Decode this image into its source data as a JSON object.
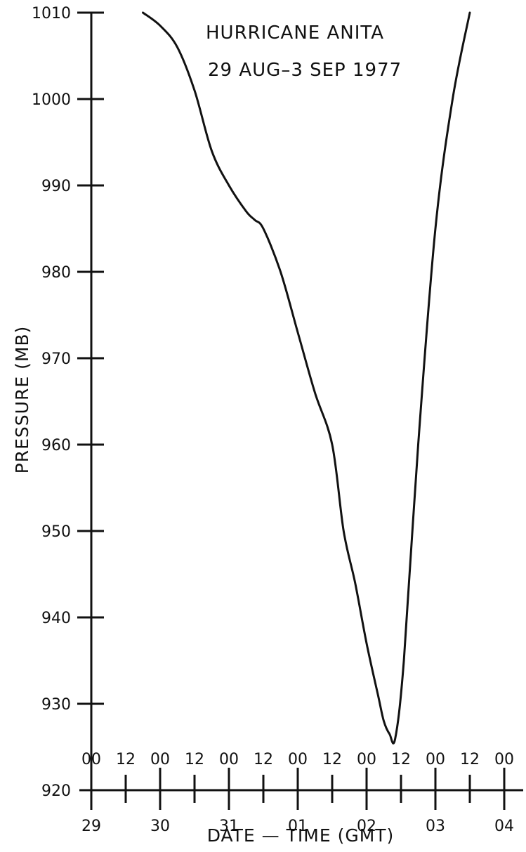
{
  "chart_data": {
    "type": "line",
    "title": "HURRICANE ANITA",
    "subtitle": "29 AUG–3 SEP 1977",
    "xlabel": "DATE — TIME (GMT)",
    "ylabel": "PRESSURE (MB)",
    "ylim": [
      920,
      1010
    ],
    "y_ticks": [
      920,
      930,
      940,
      950,
      960,
      970,
      980,
      990,
      1000,
      1010
    ],
    "x_ticks": [
      {
        "day": "29",
        "hour": "00"
      },
      {
        "day": "",
        "hour": "12"
      },
      {
        "day": "30",
        "hour": "00"
      },
      {
        "day": "",
        "hour": "12"
      },
      {
        "day": "31",
        "hour": "00"
      },
      {
        "day": "",
        "hour": "12"
      },
      {
        "day": "01",
        "hour": "00"
      },
      {
        "day": "",
        "hour": "12"
      },
      {
        "day": "02",
        "hour": "00"
      },
      {
        "day": "",
        "hour": "12"
      },
      {
        "day": "03",
        "hour": "00"
      },
      {
        "day": "",
        "hour": "12"
      },
      {
        "day": "04",
        "hour": "00"
      }
    ],
    "x_unit": "hours after 29 Aug 00 GMT",
    "grid": false,
    "series": [
      {
        "name": "",
        "x": [
          18,
          24,
          30,
          36,
          42,
          48,
          54,
          57,
          60,
          66,
          72,
          78,
          84,
          88,
          92,
          96,
          100,
          102,
          104,
          106,
          109,
          114,
          120,
          126,
          132
        ],
        "y": [
          1010,
          1008.5,
          1006,
          1001,
          994,
          990,
          987,
          986,
          985,
          980,
          973,
          966,
          960,
          950,
          944,
          937,
          931,
          928,
          926.5,
          926,
          935,
          960,
          985,
          1000,
          1010
        ]
      }
    ]
  }
}
